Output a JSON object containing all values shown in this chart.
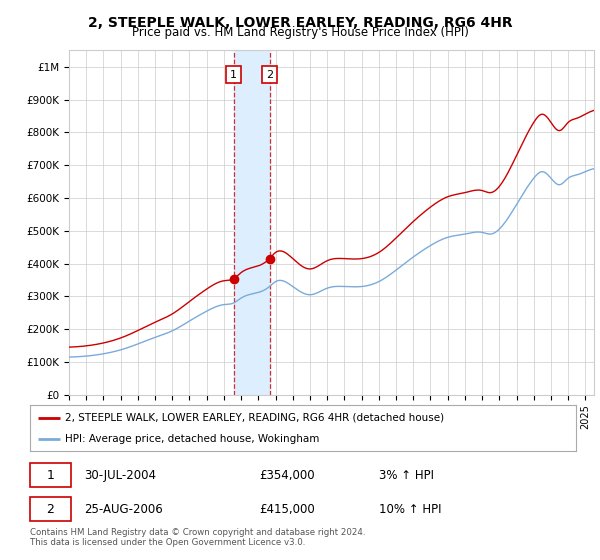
{
  "title_line1": "2, STEEPLE WALK, LOWER EARLEY, READING, RG6 4HR",
  "title_line2": "Price paid vs. HM Land Registry's House Price Index (HPI)",
  "ylabel_ticks": [
    "£0",
    "£100K",
    "£200K",
    "£300K",
    "£400K",
    "£500K",
    "£600K",
    "£700K",
    "£800K",
    "£900K",
    "£1M"
  ],
  "ytick_values": [
    0,
    100000,
    200000,
    300000,
    400000,
    500000,
    600000,
    700000,
    800000,
    900000,
    1000000
  ],
  "ylim": [
    0,
    1050000
  ],
  "xlim_start": 1995.0,
  "xlim_end": 2025.5,
  "xtick_years": [
    1995,
    1996,
    1997,
    1998,
    1999,
    2000,
    2001,
    2002,
    2003,
    2004,
    2005,
    2006,
    2007,
    2008,
    2009,
    2010,
    2011,
    2012,
    2013,
    2014,
    2015,
    2016,
    2017,
    2018,
    2019,
    2020,
    2021,
    2022,
    2023,
    2024,
    2025
  ],
  "hpi_color": "#7aabdb",
  "price_color": "#cc0000",
  "transaction1_date": 2004.57,
  "transaction1_price": 354000,
  "transaction1_label": "1",
  "transaction2_date": 2006.65,
  "transaction2_price": 415000,
  "transaction2_label": "2",
  "shading_color": "#ddeeff",
  "legend_line1": "2, STEEPLE WALK, LOWER EARLEY, READING, RG6 4HR (detached house)",
  "legend_line2": "HPI: Average price, detached house, Wokingham",
  "table_row1": [
    "1",
    "30-JUL-2004",
    "£354,000",
    "3% ↑ HPI"
  ],
  "table_row2": [
    "2",
    "25-AUG-2006",
    "£415,000",
    "10% ↑ HPI"
  ],
  "footer": "Contains HM Land Registry data © Crown copyright and database right 2024.\nThis data is licensed under the Open Government Licence v3.0.",
  "background_color": "#ffffff",
  "grid_color": "#cccccc"
}
